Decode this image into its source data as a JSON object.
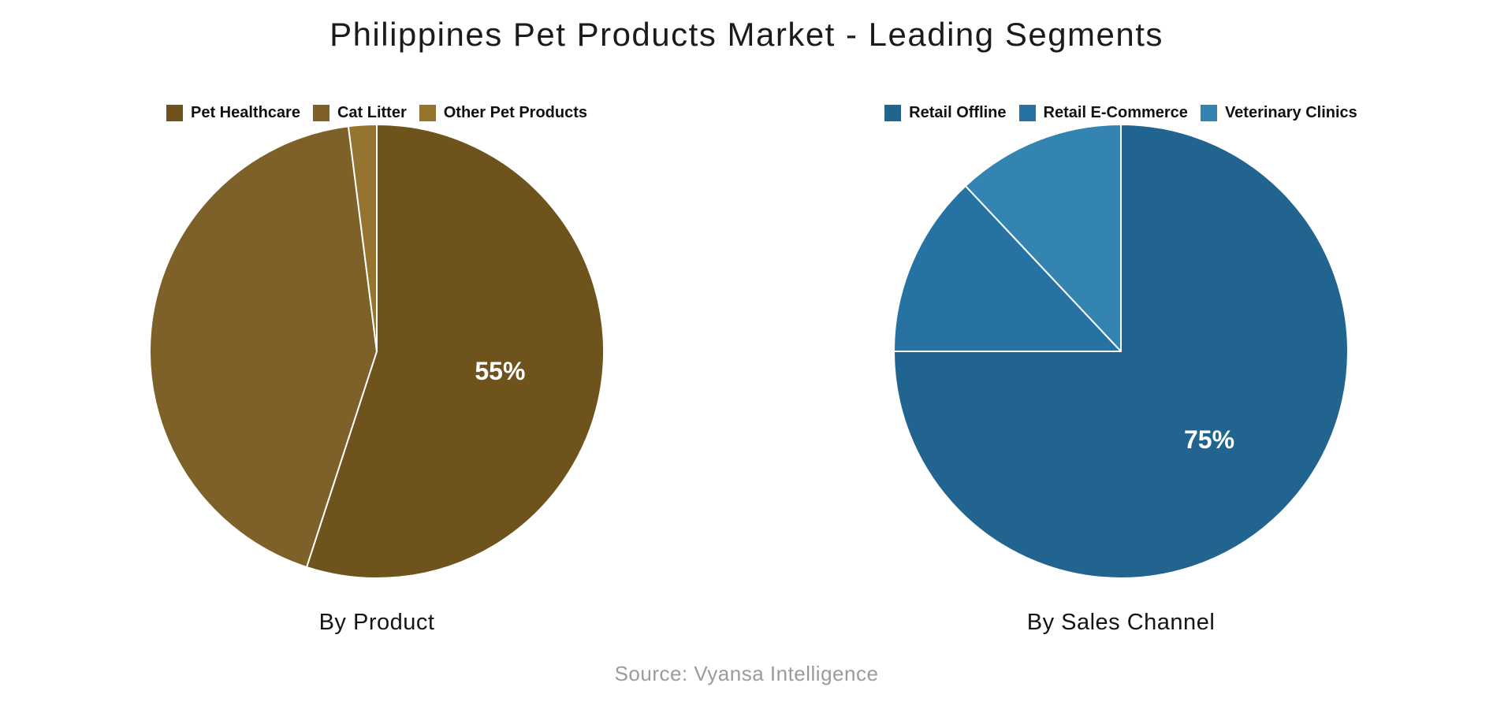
{
  "title": "Philippines Pet Products Market - Leading Segments",
  "source_note": "Source: Vyansa Intelligence",
  "text_colors": {
    "title": "#1b1b1b",
    "caption": "#141414",
    "source": "#9b9b9b",
    "pct_label": "#ffffff"
  },
  "chart_data": [
    {
      "type": "pie",
      "title": "By Product",
      "legend_position": "top",
      "start_angle": "12-oclock",
      "direction": "clockwise",
      "slices": [
        {
          "label": "Pet Healthcare",
          "value_pct": 55,
          "color": "#6e531d",
          "pct_label": "55%"
        },
        {
          "label": "Cat Litter",
          "value_pct": 43,
          "color": "#7d6128",
          "pct_label": null
        },
        {
          "label": "Other Pet Products",
          "value_pct": 2,
          "color": "#94742e",
          "pct_label": null
        }
      ]
    },
    {
      "type": "pie",
      "title": "By Sales Channel",
      "legend_position": "top",
      "start_angle": "12-oclock",
      "direction": "clockwise",
      "slices": [
        {
          "label": "Retail Offline",
          "value_pct": 75,
          "color": "#20648f",
          "pct_label": "75%"
        },
        {
          "label": "Retail E-Commerce",
          "value_pct": 13,
          "color": "#2673a3",
          "pct_label": null
        },
        {
          "label": "Veterinary Clinics",
          "value_pct": 12,
          "color": "#3384b1",
          "pct_label": null
        }
      ]
    }
  ]
}
